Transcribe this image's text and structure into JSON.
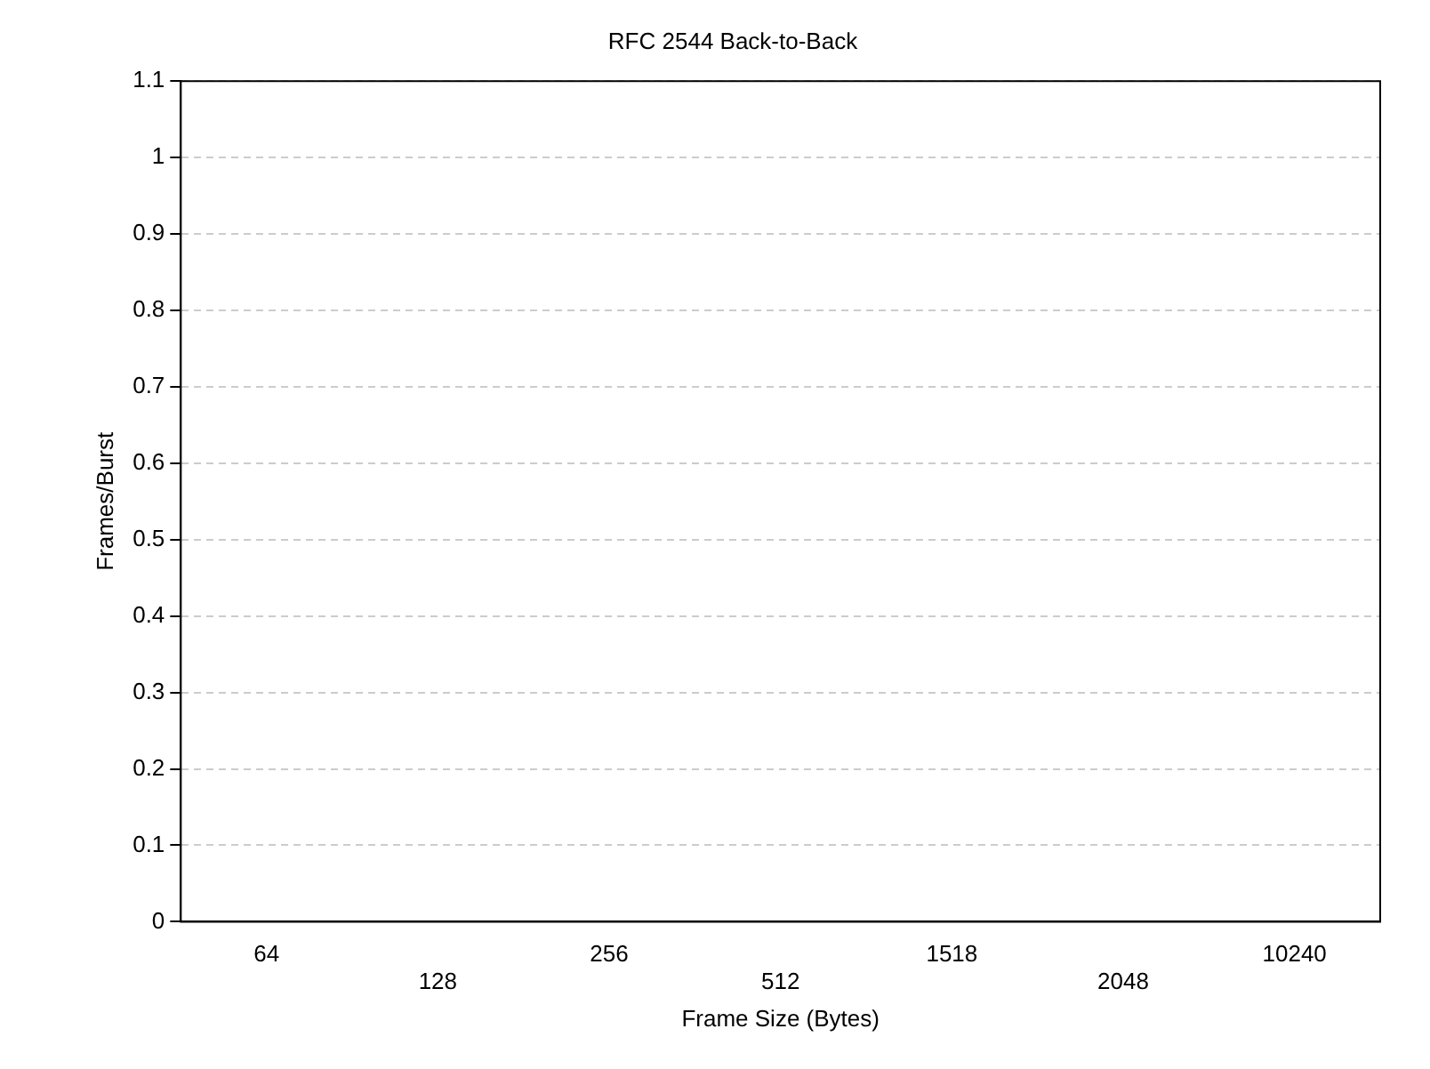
{
  "chart_data": {
    "type": "bar",
    "title": "RFC 2544 Back-to-Back",
    "xlabel": "Frame Size (Bytes)",
    "ylabel": "Frames/Burst",
    "categories": [
      "64",
      "128",
      "256",
      "512",
      "1518",
      "2048",
      "10240"
    ],
    "values": [
      null,
      null,
      null,
      null,
      null,
      null,
      null
    ],
    "ylim": [
      0,
      1.1
    ],
    "yticks": [
      0,
      0.1,
      0.2,
      0.3,
      0.4,
      0.5,
      0.6,
      0.7,
      0.8,
      0.9,
      1,
      1.1
    ],
    "grid": "y",
    "legend": false
  }
}
